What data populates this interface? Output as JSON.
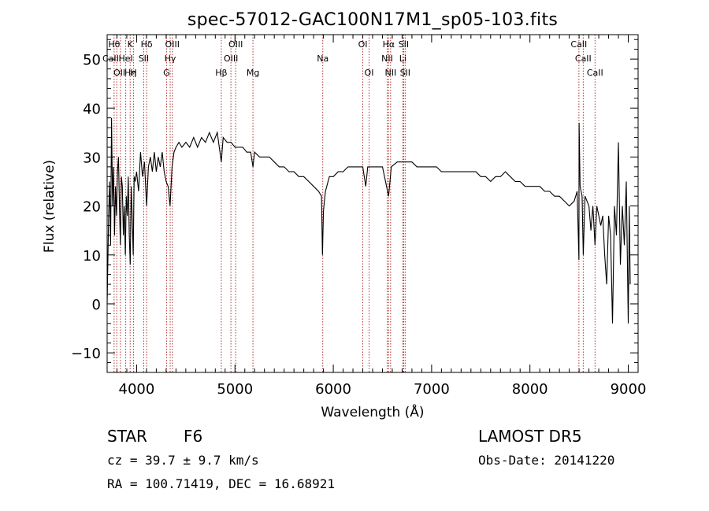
{
  "title": "spec-57012-GAC100N17M1_sp05-103.fits",
  "info": {
    "class": "STAR",
    "subclass": "F6",
    "survey": "LAMOST  DR5",
    "cz": "cz = 39.7 ± 9.7 km/s",
    "obsdate": "Obs-Date: 20141220",
    "radec": "RA = 100.71419, DEC =  16.68921"
  },
  "chart_data": {
    "type": "line",
    "title": "spec-57012-GAC100N17M1_sp05-103.fits",
    "xlabel": "Wavelength (Å)",
    "ylabel": "Flux (relative)",
    "xlim": [
      3700,
      9100
    ],
    "ylim": [
      -14,
      55
    ],
    "xticks": [
      4000,
      5000,
      6000,
      7000,
      8000,
      9000
    ],
    "yticks": [
      -10,
      0,
      10,
      20,
      30,
      40,
      50
    ],
    "line_color": "#000000",
    "marker_color": "#b03030",
    "spectrum": [
      [
        3700,
        0
      ],
      [
        3715,
        18
      ],
      [
        3725,
        25
      ],
      [
        3735,
        12
      ],
      [
        3745,
        38
      ],
      [
        3755,
        20
      ],
      [
        3765,
        28
      ],
      [
        3775,
        14
      ],
      [
        3785,
        24
      ],
      [
        3795,
        18
      ],
      [
        3805,
        27
      ],
      [
        3815,
        30
      ],
      [
        3825,
        20
      ],
      [
        3835,
        12
      ],
      [
        3845,
        26
      ],
      [
        3855,
        24
      ],
      [
        3865,
        14
      ],
      [
        3875,
        20
      ],
      [
        3885,
        10
      ],
      [
        3895,
        22
      ],
      [
        3905,
        18
      ],
      [
        3915,
        26
      ],
      [
        3925,
        14
      ],
      [
        3935,
        8
      ],
      [
        3945,
        24
      ],
      [
        3955,
        18
      ],
      [
        3965,
        10
      ],
      [
        3975,
        26
      ],
      [
        3985,
        25
      ],
      [
        4000,
        27
      ],
      [
        4020,
        23
      ],
      [
        4040,
        31
      ],
      [
        4060,
        26
      ],
      [
        4080,
        29
      ],
      [
        4101,
        20
      ],
      [
        4120,
        28
      ],
      [
        4140,
        30
      ],
      [
        4160,
        27
      ],
      [
        4180,
        31
      ],
      [
        4200,
        27
      ],
      [
        4220,
        30
      ],
      [
        4240,
        28
      ],
      [
        4260,
        31
      ],
      [
        4280,
        27
      ],
      [
        4300,
        25
      ],
      [
        4320,
        24
      ],
      [
        4340,
        20
      ],
      [
        4360,
        28
      ],
      [
        4380,
        31
      ],
      [
        4400,
        32
      ],
      [
        4430,
        33
      ],
      [
        4460,
        32
      ],
      [
        4500,
        33
      ],
      [
        4540,
        32
      ],
      [
        4580,
        34
      ],
      [
        4620,
        32
      ],
      [
        4660,
        34
      ],
      [
        4700,
        33
      ],
      [
        4740,
        35
      ],
      [
        4780,
        33
      ],
      [
        4820,
        35
      ],
      [
        4861,
        29
      ],
      [
        4880,
        34
      ],
      [
        4920,
        33
      ],
      [
        4960,
        33
      ],
      [
        5000,
        32
      ],
      [
        5040,
        32
      ],
      [
        5080,
        32
      ],
      [
        5120,
        31
      ],
      [
        5160,
        31
      ],
      [
        5183,
        28
      ],
      [
        5200,
        31
      ],
      [
        5250,
        30
      ],
      [
        5300,
        30
      ],
      [
        5350,
        30
      ],
      [
        5400,
        29
      ],
      [
        5450,
        28
      ],
      [
        5500,
        28
      ],
      [
        5550,
        27
      ],
      [
        5600,
        27
      ],
      [
        5650,
        26
      ],
      [
        5700,
        26
      ],
      [
        5750,
        25
      ],
      [
        5800,
        24
      ],
      [
        5850,
        23
      ],
      [
        5880,
        22
      ],
      [
        5890,
        10
      ],
      [
        5900,
        19
      ],
      [
        5920,
        23
      ],
      [
        5960,
        26
      ],
      [
        6000,
        26
      ],
      [
        6050,
        27
      ],
      [
        6100,
        27
      ],
      [
        6150,
        28
      ],
      [
        6200,
        28
      ],
      [
        6250,
        28
      ],
      [
        6300,
        28
      ],
      [
        6330,
        24
      ],
      [
        6350,
        28
      ],
      [
        6400,
        28
      ],
      [
        6450,
        28
      ],
      [
        6500,
        28
      ],
      [
        6563,
        22
      ],
      [
        6590,
        28
      ],
      [
        6650,
        29
      ],
      [
        6700,
        29
      ],
      [
        6750,
        29
      ],
      [
        6800,
        29
      ],
      [
        6850,
        28
      ],
      [
        6900,
        28
      ],
      [
        6950,
        28
      ],
      [
        7000,
        28
      ],
      [
        7050,
        28
      ],
      [
        7100,
        27
      ],
      [
        7150,
        27
      ],
      [
        7200,
        27
      ],
      [
        7250,
        27
      ],
      [
        7300,
        27
      ],
      [
        7350,
        27
      ],
      [
        7400,
        27
      ],
      [
        7450,
        27
      ],
      [
        7500,
        26
      ],
      [
        7550,
        26
      ],
      [
        7600,
        25
      ],
      [
        7650,
        26
      ],
      [
        7700,
        26
      ],
      [
        7750,
        27
      ],
      [
        7800,
        26
      ],
      [
        7850,
        25
      ],
      [
        7900,
        25
      ],
      [
        7950,
        24
      ],
      [
        8000,
        24
      ],
      [
        8050,
        24
      ],
      [
        8100,
        24
      ],
      [
        8150,
        23
      ],
      [
        8200,
        23
      ],
      [
        8250,
        22
      ],
      [
        8300,
        22
      ],
      [
        8350,
        21
      ],
      [
        8400,
        20
      ],
      [
        8450,
        21
      ],
      [
        8480,
        23
      ],
      [
        8498,
        9
      ],
      [
        8500,
        37
      ],
      [
        8510,
        24
      ],
      [
        8530,
        22
      ],
      [
        8542,
        10
      ],
      [
        8560,
        22
      ],
      [
        8580,
        21
      ],
      [
        8600,
        20
      ],
      [
        8620,
        15
      ],
      [
        8640,
        20
      ],
      [
        8662,
        12
      ],
      [
        8680,
        20
      ],
      [
        8700,
        18
      ],
      [
        8720,
        16
      ],
      [
        8740,
        18
      ],
      [
        8760,
        10
      ],
      [
        8780,
        4
      ],
      [
        8800,
        18
      ],
      [
        8820,
        14
      ],
      [
        8840,
        -4
      ],
      [
        8860,
        20
      ],
      [
        8880,
        14
      ],
      [
        8900,
        33
      ],
      [
        8920,
        8
      ],
      [
        8940,
        20
      ],
      [
        8960,
        12
      ],
      [
        8980,
        25
      ],
      [
        9000,
        -4
      ],
      [
        9010,
        20
      ],
      [
        9020,
        4
      ]
    ],
    "line_markers": [
      {
        "wl": 3771,
        "label": "Hθ",
        "row": 0
      },
      {
        "wl": 3798,
        "label": "",
        "row": 0
      },
      {
        "wl": 3835,
        "label": "",
        "row": 0
      },
      {
        "wl": 3889,
        "label": "HeI",
        "row": 1
      },
      {
        "wl": 3934,
        "label": "K",
        "row": 0
      },
      {
        "wl": 3969,
        "label": "H",
        "row": 2
      },
      {
        "wl": 4102,
        "label": "Hδ",
        "row": 0
      },
      {
        "wl": 4072,
        "label": "SII",
        "row": 1
      },
      {
        "wl": 4304,
        "label": "G",
        "row": 2
      },
      {
        "wl": 4341,
        "label": "Hγ",
        "row": 1
      },
      {
        "wl": 4363,
        "label": "OIII",
        "row": 0
      },
      {
        "wl": 4861,
        "label": "Hβ",
        "row": 2
      },
      {
        "wl": 4959,
        "label": "OIII",
        "row": 1
      },
      {
        "wl": 5007,
        "label": "OIII",
        "row": 0
      },
      {
        "wl": 5183,
        "label": "Mg",
        "row": 2
      },
      {
        "wl": 5893,
        "label": "Na",
        "row": 1
      },
      {
        "wl": 6300,
        "label": "OI",
        "row": 0
      },
      {
        "wl": 6364,
        "label": "OI",
        "row": 2
      },
      {
        "wl": 6548,
        "label": "NII",
        "row": 1
      },
      {
        "wl": 6563,
        "label": "Hα",
        "row": 0
      },
      {
        "wl": 6583,
        "label": "NII",
        "row": 2
      },
      {
        "wl": 6707,
        "label": "Li",
        "row": 1
      },
      {
        "wl": 6716,
        "label": "SII",
        "row": 0
      },
      {
        "wl": 6731,
        "label": "SII",
        "row": 2
      },
      {
        "wl": 8498,
        "label": "CaII",
        "row": 0
      },
      {
        "wl": 8542,
        "label": "CaII",
        "row": 1
      },
      {
        "wl": 8662,
        "label": "CaII",
        "row": 2
      }
    ],
    "left_labels": [
      {
        "label": "CaII",
        "row": 1
      },
      {
        "label": "OII",
        "row": 2
      },
      {
        "label": "Hη",
        "row": 2
      }
    ]
  }
}
